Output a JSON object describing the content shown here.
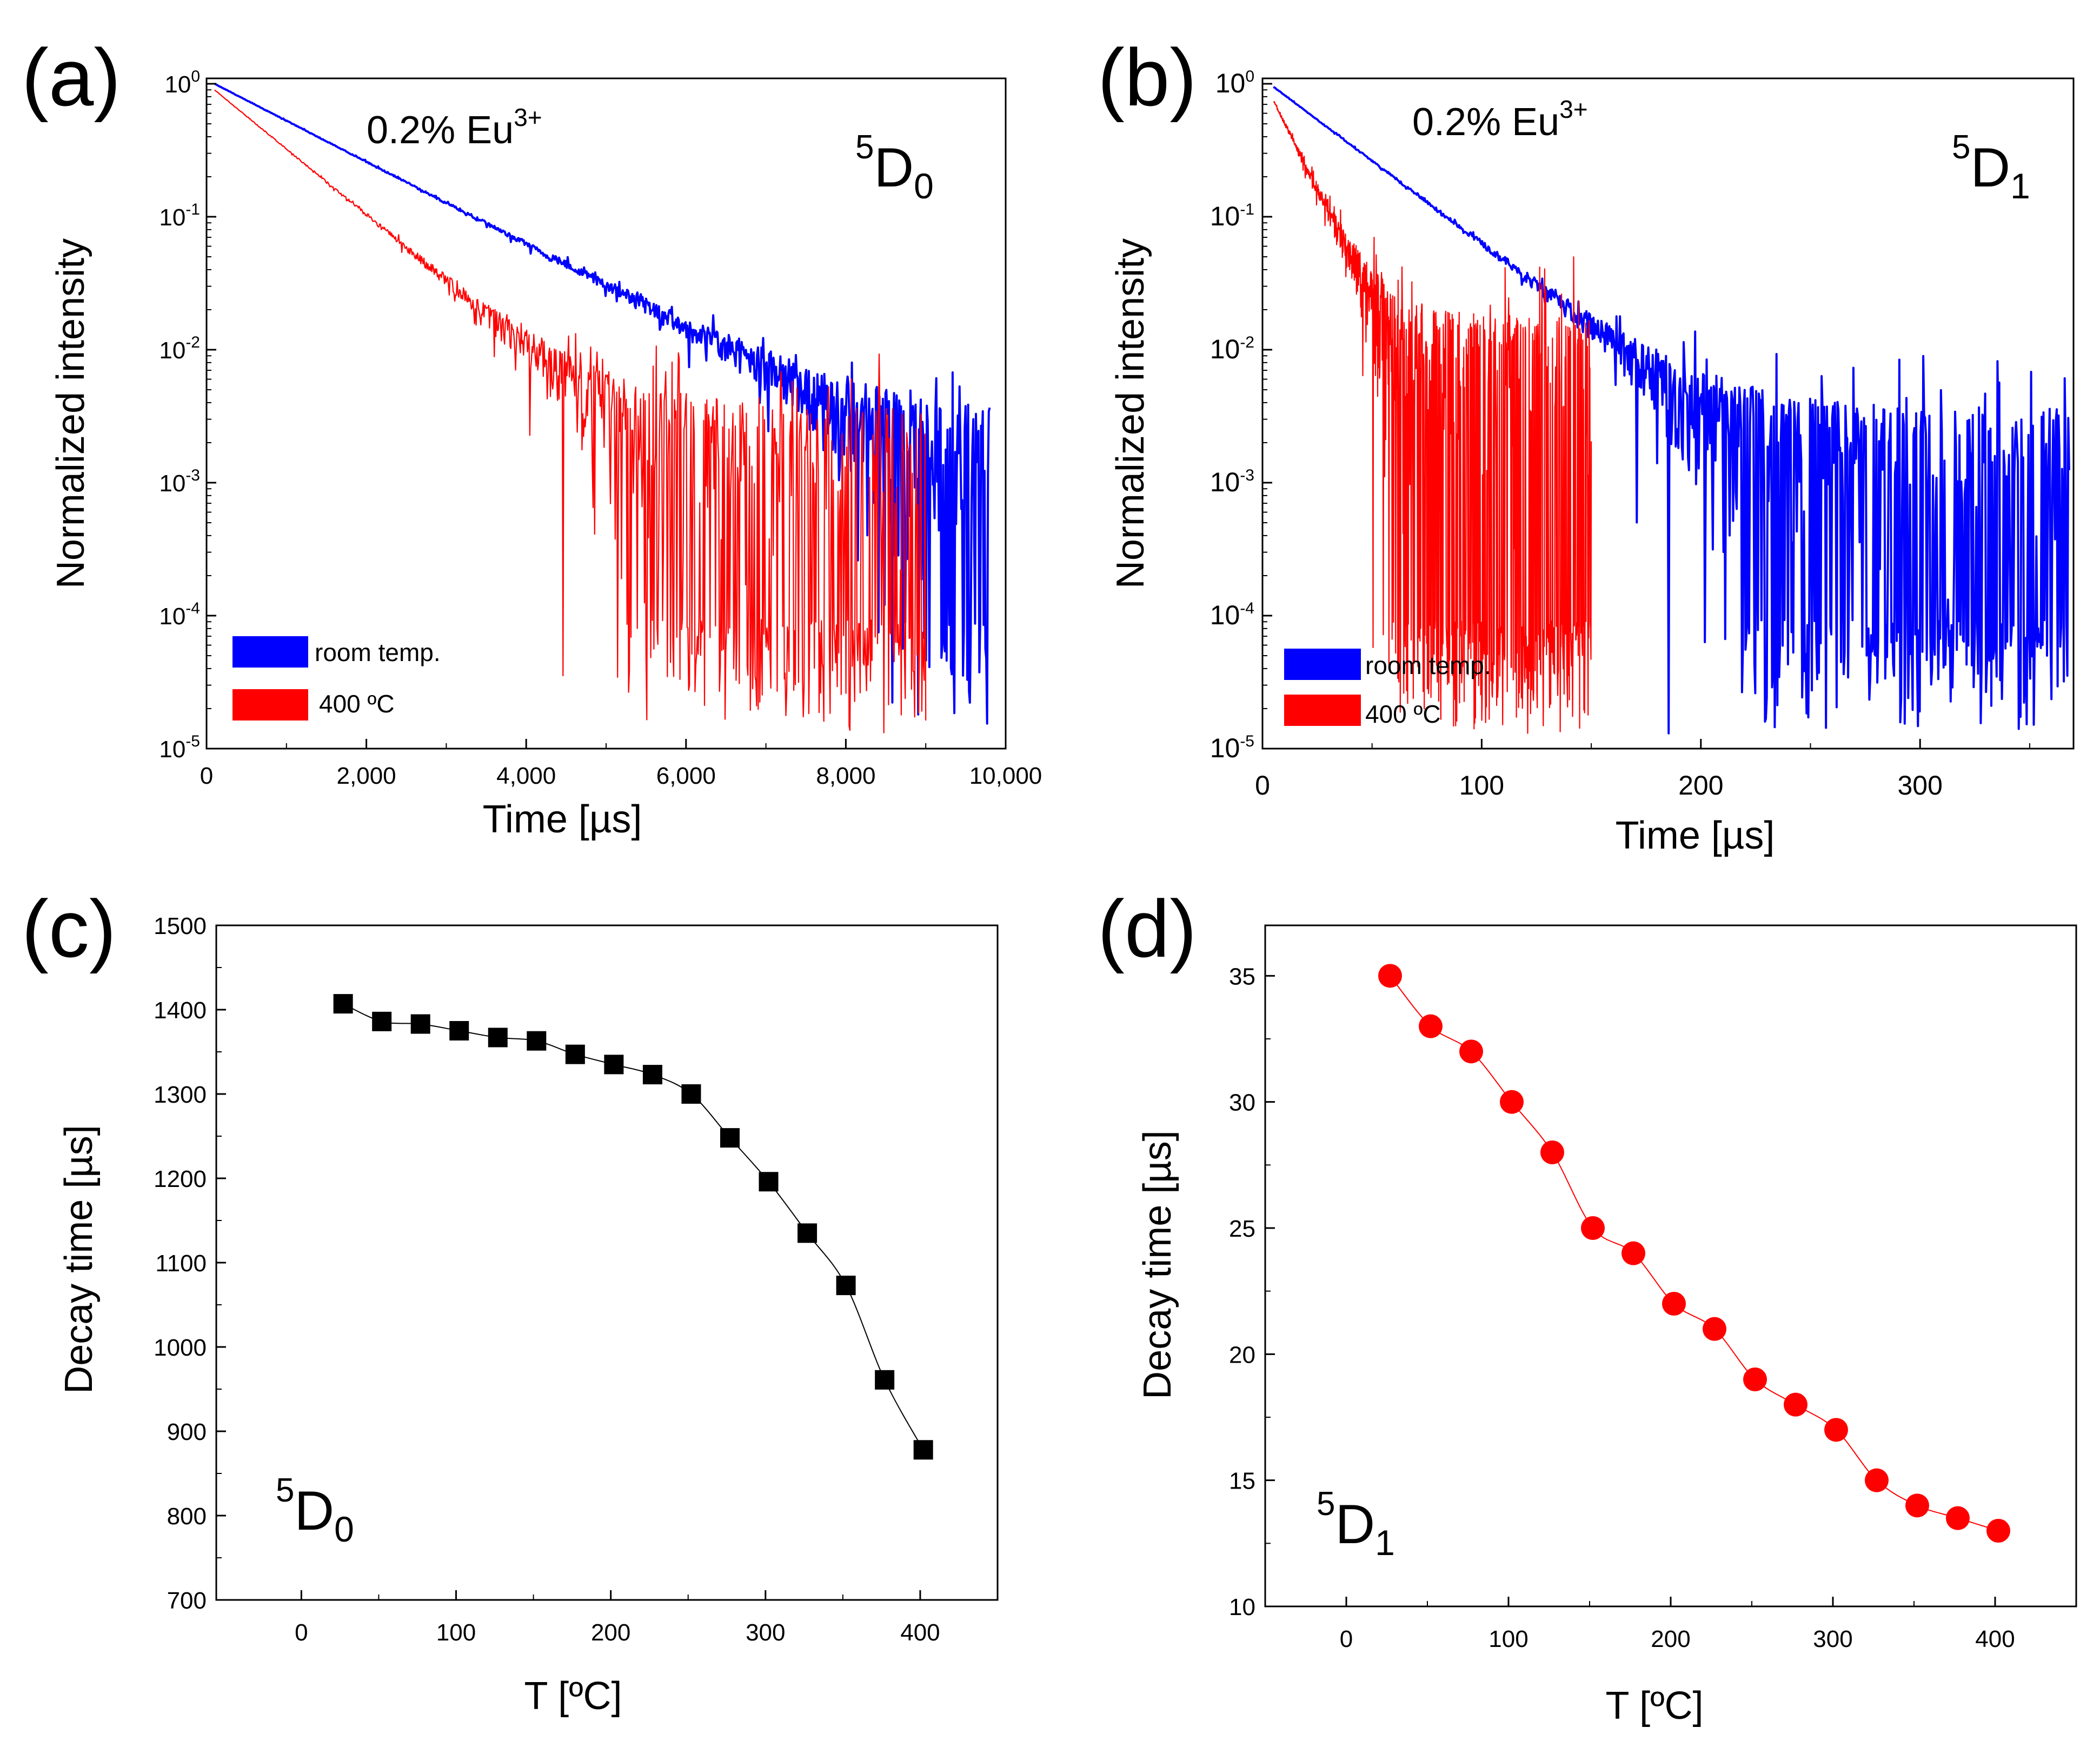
{
  "chart_data": [
    {
      "panel": "(a)",
      "type": "line",
      "title": "",
      "xlabel": "Time [µs]",
      "ylabel": "Normalized intensity",
      "yscale": "log",
      "xlim": [
        0,
        10000
      ],
      "ylim_exp": [
        -5,
        0
      ],
      "x_ticks": [
        "0",
        "2,000",
        "4,000",
        "6,000",
        "8,000",
        "10,000"
      ],
      "x_tick_values": [
        0,
        2000,
        4000,
        6000,
        8000,
        10000
      ],
      "y_tick_exponents": [
        "0",
        "-1",
        "-2",
        "-3",
        "-4",
        "-5"
      ],
      "y_tick_base": "10",
      "annotation": "0.2% Eu",
      "annotation_sup": "3+",
      "level_label": {
        "sup": "5",
        "main": "D",
        "sub": "0"
      },
      "legend": [
        "room temp.",
        "400 ºC"
      ],
      "series": [
        {
          "name": "room temp.",
          "color": "#0000ff",
          "decay_time_us": 1407,
          "noise_floor": 0.003,
          "x_start": 100,
          "x_end": 9800,
          "y0": 1.0
        },
        {
          "name": "400 ºC",
          "color": "#ff0000",
          "decay_time_us": 878,
          "noise_floor": 0.004,
          "x_start": 100,
          "x_end": 9000,
          "y0": 0.9
        }
      ]
    },
    {
      "panel": "(b)",
      "type": "line",
      "title": "",
      "xlabel": "Time [µs]",
      "ylabel": "Normalized intensity",
      "yscale": "log",
      "xlim": [
        0,
        370
      ],
      "ylim_exp": [
        -5,
        0
      ],
      "x_ticks": [
        "0",
        "100",
        "200",
        "300"
      ],
      "x_tick_values": [
        0,
        100,
        200,
        300
      ],
      "y_tick_exponents": [
        "0",
        "-1",
        "-2",
        "-3",
        "-4",
        "-5"
      ],
      "y_tick_base": "10",
      "annotation": "0.2% Eu",
      "annotation_sup": "3+",
      "level_label": {
        "sup": "5",
        "main": "D",
        "sub": "1"
      },
      "legend": [
        "room temp.",
        "400 ºC"
      ],
      "series": [
        {
          "name": "room temp.",
          "color": "#0000ff",
          "decay_time_us": 35,
          "noise_floor": 0.004,
          "x_start": 5,
          "x_end": 368,
          "y0": 0.95
        },
        {
          "name": "400 ºC",
          "color": "#ff0000",
          "decay_time_us": 13,
          "noise_floor": 0.02,
          "x_start": 5,
          "x_end": 150,
          "y0": 0.75
        }
      ]
    },
    {
      "panel": "(c)",
      "type": "scatter",
      "title": "",
      "xlabel": "T [ºC]",
      "ylabel": "Decay time [µs]",
      "xlim": [
        -55,
        450
      ],
      "ylim": [
        700,
        1500
      ],
      "x_ticks": [
        0,
        100,
        200,
        300,
        400
      ],
      "y_ticks": [
        700,
        800,
        900,
        1000,
        1100,
        1200,
        1300,
        1400,
        1500
      ],
      "level_label": {
        "sup": "5",
        "main": "D",
        "sub": "0"
      },
      "marker": "square",
      "color": "#000000",
      "x": [
        27,
        52,
        77,
        102,
        127,
        152,
        177,
        202,
        227,
        252,
        277,
        302,
        327,
        352,
        377,
        402
      ],
      "y": [
        1407,
        1386,
        1383,
        1375,
        1367,
        1363,
        1347,
        1335,
        1323,
        1300,
        1248,
        1196,
        1135,
        1073,
        961,
        878
      ]
    },
    {
      "panel": "(d)",
      "type": "scatter",
      "title": "",
      "xlabel": "T [ºC]",
      "ylabel": "Decay time [µs]",
      "xlim": [
        -50,
        450
      ],
      "ylim": [
        10,
        37
      ],
      "x_ticks": [
        0,
        100,
        200,
        300,
        400
      ],
      "y_ticks": [
        10,
        15,
        20,
        25,
        30,
        35
      ],
      "level_label": {
        "sup": "5",
        "main": "D",
        "sub": "1"
      },
      "marker": "circle",
      "color": "#ff0000",
      "x": [
        27,
        52,
        77,
        102,
        127,
        152,
        177,
        202,
        227,
        252,
        277,
        302,
        327,
        352,
        377,
        402
      ],
      "y": [
        35,
        33,
        32,
        30,
        28,
        25,
        24,
        22,
        21,
        19,
        18,
        17,
        15,
        14,
        13.5,
        13
      ]
    }
  ]
}
